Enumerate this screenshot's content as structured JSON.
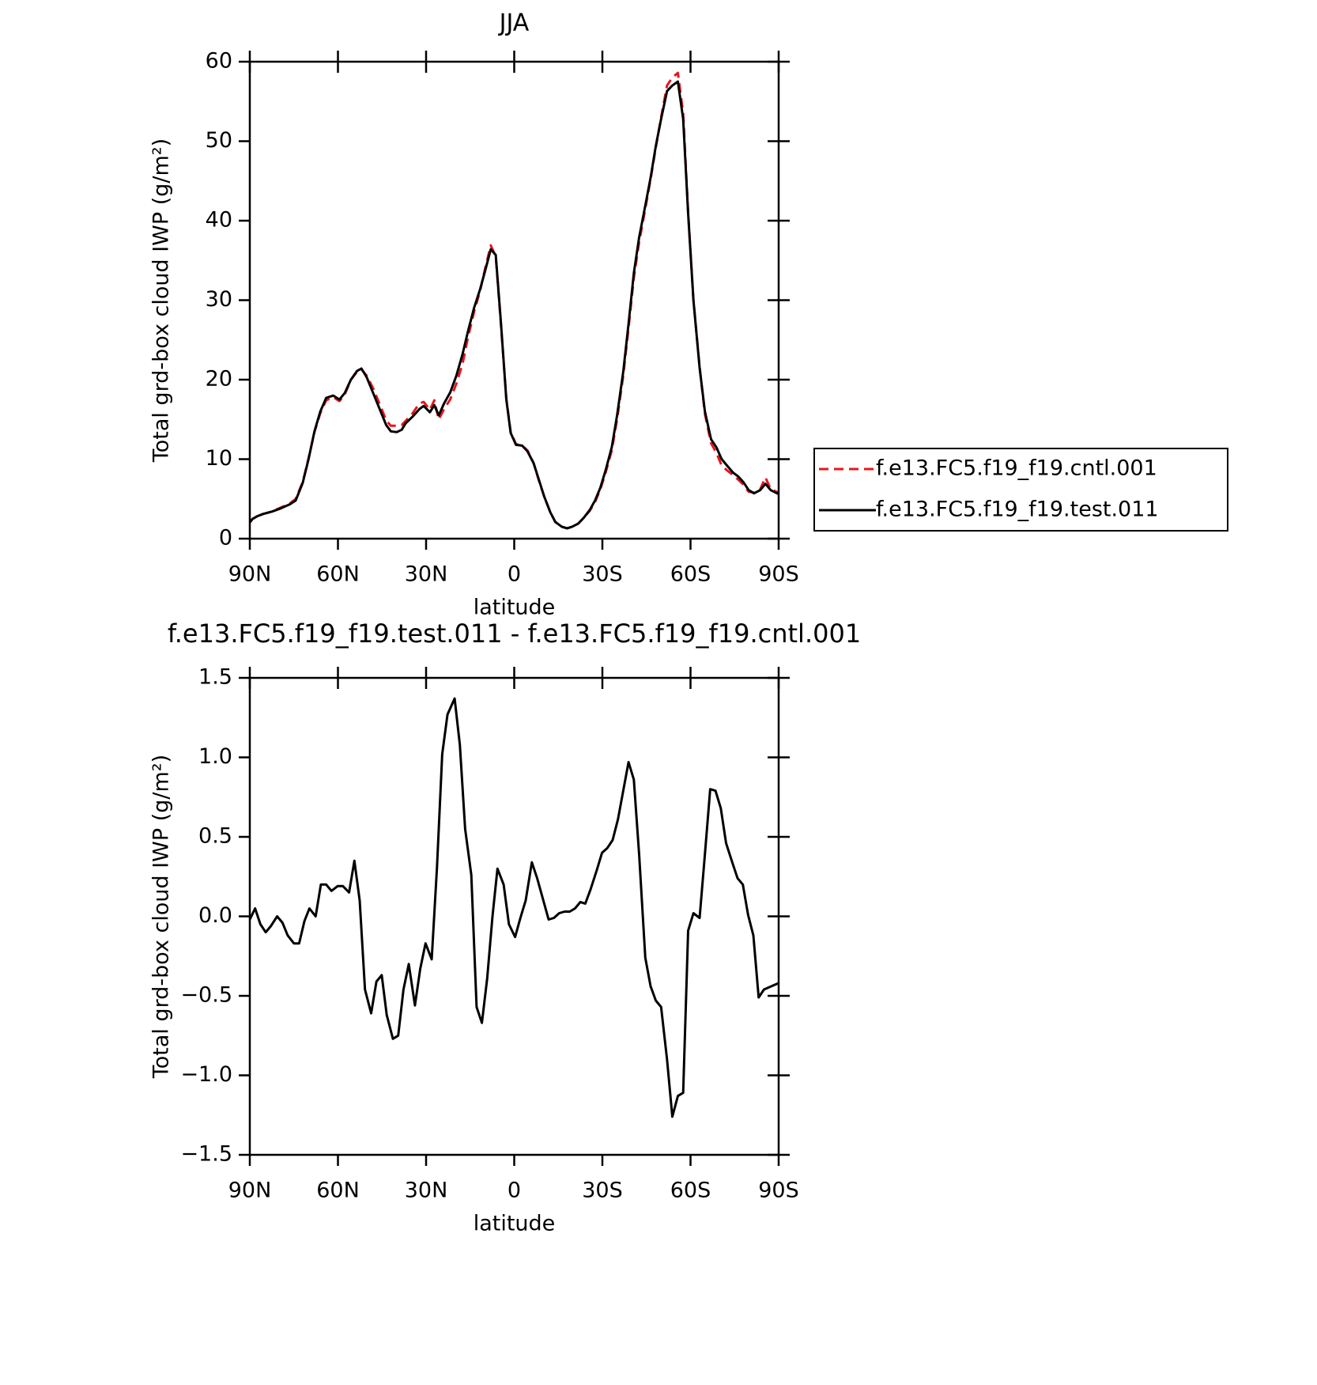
{
  "chart_data": [
    {
      "type": "line",
      "title": "JJA",
      "x": [
        90,
        89,
        87.6,
        85.5,
        82.5,
        79.5,
        76.5,
        74.4,
        72,
        70,
        68,
        66,
        64,
        61.6,
        59.5,
        57.7,
        55.6,
        53.5,
        52,
        50.2,
        48,
        46,
        43.6,
        42,
        40,
        38.3,
        37,
        34.7,
        32.3,
        30.8,
        28.7,
        27.2,
        25.7,
        23.9,
        21.8,
        19.7,
        17.6,
        15.8,
        13.7,
        11.6,
        9.9,
        8,
        6.3,
        4.5,
        2.7,
        1.2,
        -0.6,
        -2.7,
        -4.5,
        -6.6,
        -8.4,
        -10.2,
        -12.3,
        -14,
        -16.2,
        -18,
        -19.7,
        -21.8,
        -23.6,
        -25.7,
        -27.5,
        -29.3,
        -31.1,
        -33.2,
        -35,
        -37.1,
        -38.9,
        -40.7,
        -42.5,
        -44.6,
        -46.4,
        -48.2,
        -50,
        -52,
        -53.8,
        -55.7,
        -57.5,
        -59.2,
        -61,
        -63.1,
        -64.9,
        -67,
        -68.8,
        -70.6,
        -72.4,
        -74.5,
        -76.3,
        -78,
        -79.8,
        -81.6,
        -83.7,
        -85.5,
        -87.3,
        -90
      ],
      "series": [
        {
          "name": "f.e13.FC5.f19_f19.cntl.001",
          "color": "#e8141c",
          "dash": "dashed",
          "values": [
            2.0,
            2.5,
            2.8,
            3.1,
            3.4,
            3.9,
            4.4,
            5.0,
            7.1,
            10.1,
            13.4,
            15.8,
            17.4,
            17.8,
            17.3,
            18.1,
            20.0,
            21.0,
            21.3,
            20.5,
            18.9,
            17.1,
            14.9,
            14.2,
            14.2,
            14.3,
            14.8,
            15.7,
            17.0,
            17.2,
            16.2,
            17.4,
            15.0,
            16.3,
            17.5,
            19.5,
            22.0,
            25.2,
            28.5,
            31.2,
            34.0,
            36.9,
            35.5,
            26.8,
            17.6,
            13.4,
            11.9,
            11.7,
            11.1,
            9.5,
            7.3,
            5.3,
            3.3,
            2.1,
            1.5,
            1.3,
            1.5,
            1.9,
            2.6,
            3.5,
            4.6,
            6.2,
            8.3,
            11.1,
            15.0,
            20.5,
            26.5,
            32.8,
            37.3,
            41.5,
            45.2,
            49.2,
            53.0,
            57.0,
            58.0,
            58.6,
            53.5,
            41.0,
            30.0,
            21.6,
            15.7,
            12.0,
            10.8,
            9.2,
            8.6,
            8.0,
            7.4,
            6.8,
            5.9,
            5.8,
            6.2,
            7.7,
            6.2,
            5.8
          ]
        },
        {
          "name": "f.e13.FC5.f19_f19.test.011",
          "color": "#000000",
          "dash": "solid",
          "values": [
            2.1,
            2.5,
            2.8,
            3.1,
            3.4,
            3.8,
            4.3,
            4.8,
            7,
            10,
            13.5,
            16,
            17.7,
            18,
            17.5,
            18.3,
            20,
            21.1,
            21.4,
            20.3,
            18.3,
            16.5,
            14.3,
            13.5,
            13.4,
            13.7,
            14.5,
            15.3,
            16.3,
            16.7,
            15.9,
            16.8,
            15.5,
            17,
            18.4,
            20.5,
            23.2,
            26,
            29,
            31.4,
            33.7,
            36.4,
            35.7,
            27,
            17.5,
            13.3,
            11.8,
            11.7,
            11,
            9.5,
            7.4,
            5.3,
            3.3,
            2.1,
            1.5,
            1.3,
            1.5,
            1.9,
            2.6,
            3.6,
            4.8,
            6.4,
            8.6,
            11.5,
            15.5,
            21,
            27,
            33.4,
            37.9,
            41.9,
            45.4,
            49.4,
            52.8,
            56.3,
            57,
            57.5,
            52.8,
            40.9,
            30,
            21.5,
            16,
            12.5,
            11.5,
            10,
            9.2,
            8.3,
            7.8,
            7.1,
            6.1,
            5.7,
            6.1,
            6.9,
            6.1,
            5.6
          ]
        }
      ],
      "xlim": [
        90,
        -90
      ],
      "xticks": [
        {
          "value": 90,
          "label": "90N"
        },
        {
          "value": 60,
          "label": "60N"
        },
        {
          "value": 30,
          "label": "30N"
        },
        0,
        {
          "value": -30,
          "label": "30S"
        },
        {
          "value": -60,
          "label": "60S"
        },
        {
          "value": -90,
          "label": "90S"
        }
      ],
      "ylim": [
        0,
        60
      ],
      "yticks": [
        0,
        10,
        20,
        30,
        40,
        50,
        60
      ],
      "xlabel": "latitude",
      "ylabel": "Total grd-box cloud IWP (g/m²)",
      "legend": "outside right"
    },
    {
      "type": "line",
      "title": "f.e13.FC5.f19_f19.test.011 - f.e13.FC5.f19_f19.cntl.001",
      "x": [
        90,
        88.2,
        86.4,
        84.6,
        82.8,
        80.7,
        78.9,
        77.1,
        75,
        73.2,
        71.4,
        69.7,
        67.6,
        65.8,
        64,
        62.2,
        60.1,
        58.3,
        56.2,
        54.4,
        52.6,
        50.8,
        48.7,
        46.9,
        45.1,
        43.4,
        41.3,
        39.5,
        37.7,
        35.9,
        33.8,
        32,
        30.2,
        28.1,
        26.3,
        24.5,
        22.7,
        20.3,
        18.5,
        16.7,
        14.6,
        12.8,
        11,
        9.2,
        7.4,
        5.7,
        3.6,
        1.8,
        -0.3,
        -2.1,
        -3.9,
        -6,
        -7.8,
        -9.6,
        -11.7,
        -13.5,
        -15.3,
        -17.1,
        -18.9,
        -20.7,
        -22.5,
        -24.2,
        -26,
        -28.1,
        -29.9,
        -31.7,
        -33.5,
        -35.3,
        -37.1,
        -38.9,
        -40.7,
        -42.5,
        -44.6,
        -46.4,
        -48.2,
        -50,
        -52,
        -53.8,
        -55.7,
        -57.5,
        -59.2,
        -61,
        -63.1,
        -64.9,
        -66.7,
        -68.5,
        -70.3,
        -72.1,
        -74.2,
        -76,
        -77.8,
        -79.6,
        -81.4,
        -83.2,
        -85,
        -90
      ],
      "series": [
        {
          "color": "#000000",
          "dash": "solid",
          "values": [
            -0.02,
            0.05,
            -0.05,
            -0.1,
            -0.06,
            0,
            -0.04,
            -0.12,
            -0.17,
            -0.17,
            -0.03,
            0.05,
            0,
            0.2,
            0.2,
            0.16,
            0.19,
            0.19,
            0.15,
            0.35,
            0.1,
            -0.46,
            -0.61,
            -0.41,
            -0.37,
            -0.62,
            -0.77,
            -0.75,
            -0.46,
            -0.3,
            -0.56,
            -0.33,
            -0.17,
            -0.27,
            0.31,
            1.02,
            1.27,
            1.37,
            1.08,
            0.55,
            0.26,
            -0.57,
            -0.67,
            -0.39,
            0,
            0.3,
            0.2,
            -0.05,
            -0.13,
            -0.01,
            0.1,
            0.34,
            0.24,
            0.12,
            -0.02,
            -0.01,
            0.02,
            0.03,
            0.03,
            0.05,
            0.09,
            0.08,
            0.17,
            0.29,
            0.4,
            0.43,
            0.48,
            0.61,
            0.79,
            0.97,
            0.86,
            0.39,
            -0.26,
            -0.44,
            -0.53,
            -0.57,
            -0.9,
            -1.26,
            -1.13,
            -1.11,
            -0.09,
            0.02,
            -0.01,
            0.39,
            0.8,
            0.79,
            0.68,
            0.46,
            0.34,
            0.24,
            0.2,
            0.01,
            -0.12,
            -0.51,
            -0.46,
            -0.42
          ]
        }
      ],
      "xlim": [
        90,
        -90
      ],
      "xticks": [
        {
          "value": 90,
          "label": "90N"
        },
        {
          "value": 60,
          "label": "60N"
        },
        {
          "value": 30,
          "label": "30N"
        },
        0,
        {
          "value": -30,
          "label": "30S"
        },
        {
          "value": -60,
          "label": "60S"
        },
        {
          "value": -90,
          "label": "90S"
        }
      ],
      "ylim": [
        -1.5,
        1.5
      ],
      "yticks": [
        {
          "value": -1.5,
          "label": "−1.5"
        },
        {
          "value": -1,
          "label": "−1.0"
        },
        {
          "value": -0.5,
          "label": "−0.5"
        },
        {
          "value": 0,
          "label": "0.0"
        },
        0.5,
        {
          "value": 1,
          "label": "1.0"
        },
        1.5
      ],
      "xlabel": "latitude",
      "ylabel": "Total grd-box cloud IWP (g/m²)"
    }
  ]
}
